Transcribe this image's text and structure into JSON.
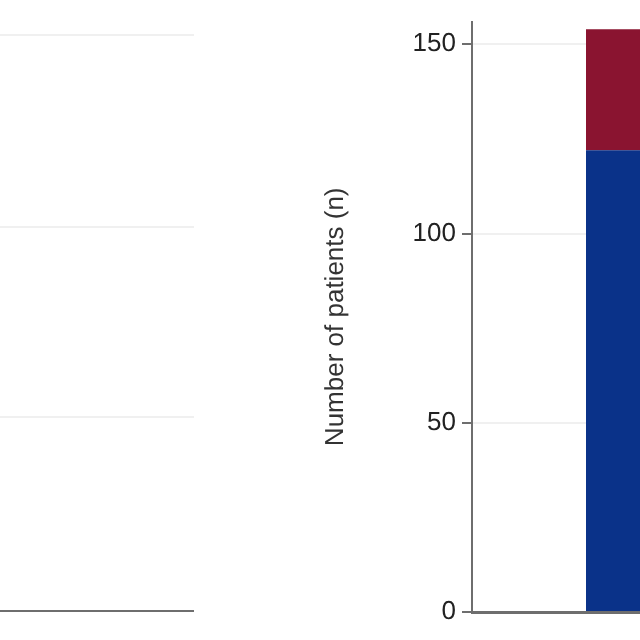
{
  "chart_data": {
    "type": "bar",
    "ylabel": "Number of patients (n)",
    "categories": [
      null
    ],
    "stacked": true,
    "series": [
      {
        "color": "#0a3289",
        "values": [
          122
        ]
      },
      {
        "color": "#8a1430",
        "values": [
          32
        ]
      }
    ],
    "ylim": [
      0,
      156
    ],
    "yticks": [
      0,
      50,
      100,
      150
    ],
    "grid": "y",
    "tick_labels": "y",
    "legend": false
  }
}
